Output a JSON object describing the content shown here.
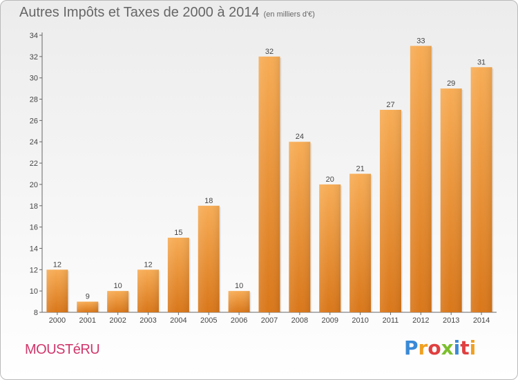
{
  "title": "Autres Impôts et Taxes de 2000 à 2014",
  "unit_note": "(en milliers d'€)",
  "commune": "MOUSTéRU",
  "logo": {
    "text": "Proxiti",
    "letters": [
      "P",
      "r",
      "o",
      "x",
      "i",
      "t",
      "i"
    ],
    "colors": [
      "#3a8ad6",
      "#f0a020",
      "#e04040",
      "#7cbf2e",
      "#3a8ad6",
      "#e04040",
      "#f0a020"
    ]
  },
  "colors": {
    "bar": "#f0922e",
    "bar_light": "#f7ad5a",
    "bar_dark": "#d97a18",
    "axis": "#555555",
    "grid": "#d8d8d8",
    "commune": "#d0366b"
  },
  "chart_data": {
    "type": "bar",
    "title": "Autres Impôts et Taxes de 2000 à 2014",
    "subtitle": "(en milliers d'€)",
    "xlabel": "",
    "ylabel": "",
    "categories": [
      "2000",
      "2001",
      "2002",
      "2003",
      "2004",
      "2005",
      "2006",
      "2007",
      "2008",
      "2009",
      "2010",
      "2011",
      "2012",
      "2013",
      "2014"
    ],
    "values": [
      12,
      9,
      10,
      12,
      15,
      18,
      10,
      32,
      24,
      20,
      21,
      27,
      33,
      29,
      31
    ],
    "ylim": [
      8,
      34
    ],
    "yticks": [
      8,
      10,
      12,
      14,
      16,
      18,
      20,
      22,
      24,
      26,
      28,
      30,
      32,
      34
    ],
    "grid": false,
    "legend": "none"
  }
}
